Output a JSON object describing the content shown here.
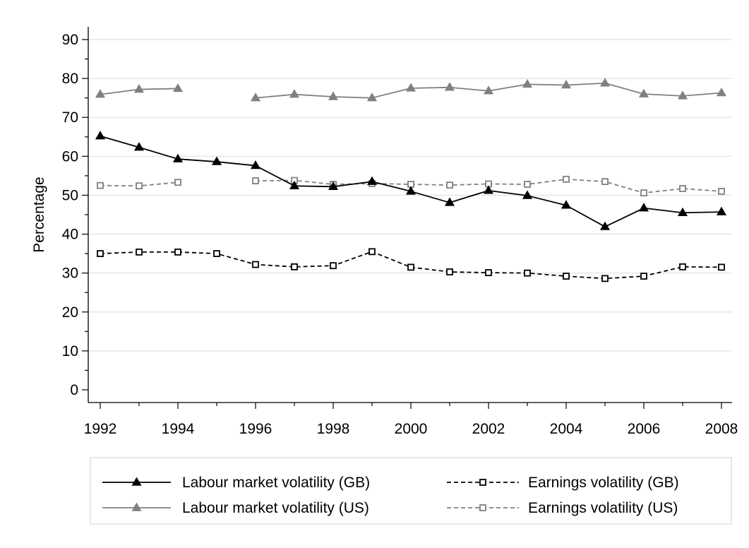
{
  "chart_data": {
    "type": "line",
    "title": "",
    "xlabel": "",
    "ylabel": "Percentage",
    "xlim": [
      1992,
      2008
    ],
    "ylim": [
      0,
      90
    ],
    "x_ticks": [
      1992,
      1994,
      1996,
      1998,
      2000,
      2002,
      2004,
      2006,
      2008
    ],
    "y_ticks": [
      0,
      10,
      20,
      30,
      40,
      50,
      60,
      70,
      80,
      90
    ],
    "grid": "horizontal",
    "legend_position": "bottom",
    "x": [
      1992,
      1993,
      1994,
      1995,
      1996,
      1997,
      1998,
      1999,
      2000,
      2001,
      2002,
      2003,
      2004,
      2005,
      2006,
      2007,
      2008
    ],
    "series": [
      {
        "name": "Labour market volatility (GB)",
        "color": "#000000",
        "dash": "solid",
        "marker": "triangle-filled",
        "values": [
          65.2,
          62.3,
          59.3,
          58.6,
          57.6,
          52.4,
          52.2,
          53.5,
          51.0,
          48.1,
          51.2,
          49.9,
          47.4,
          41.9,
          46.7,
          45.5,
          45.7
        ]
      },
      {
        "name": "Labour market volatility (US)",
        "color": "#808080",
        "dash": "solid",
        "marker": "triangle-filled",
        "values": [
          75.9,
          77.2,
          77.4,
          null,
          75.0,
          75.9,
          75.3,
          75.0,
          77.5,
          77.7,
          76.8,
          78.5,
          78.3,
          78.8,
          76.0,
          75.5,
          76.3
        ]
      },
      {
        "name": "Earnings volatility (GB)",
        "color": "#000000",
        "dash": "dashed",
        "marker": "square-hollow",
        "values": [
          35.0,
          35.4,
          35.4,
          35.0,
          32.2,
          31.6,
          31.9,
          35.5,
          31.5,
          30.3,
          30.1,
          30.0,
          29.2,
          28.6,
          29.2,
          31.6,
          31.5
        ]
      },
      {
        "name": "Earnings volatility (US)",
        "color": "#808080",
        "dash": "dashed",
        "marker": "square-hollow",
        "values": [
          52.5,
          52.4,
          53.3,
          null,
          53.7,
          53.8,
          52.8,
          53.0,
          52.8,
          52.6,
          52.9,
          52.8,
          54.1,
          53.5,
          50.6,
          51.7,
          51.0
        ]
      }
    ]
  }
}
